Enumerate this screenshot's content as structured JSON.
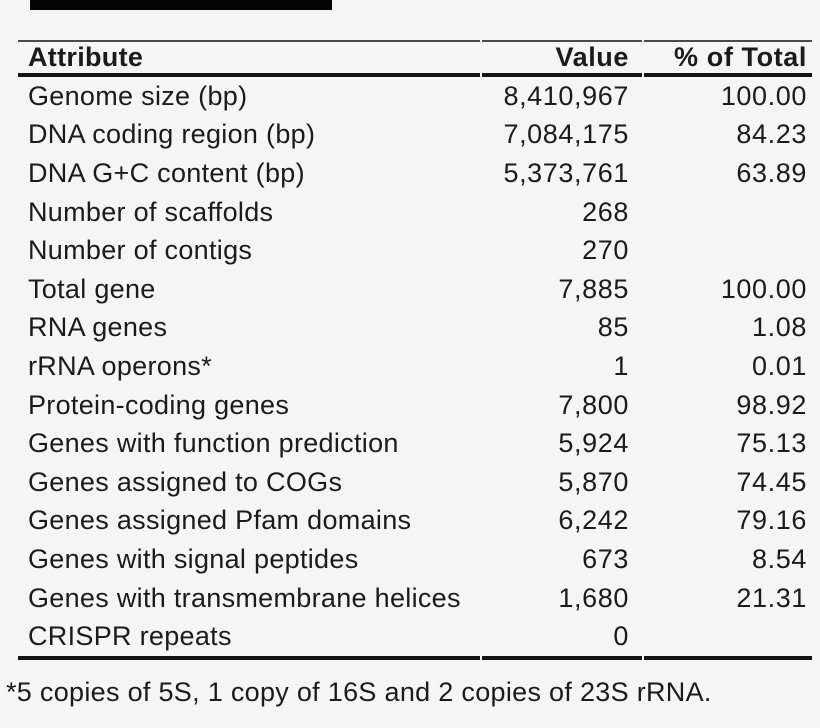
{
  "colors": {
    "background": "#f5f5f5",
    "text": "#1b1b1b",
    "rule_thin": "#4a4a4a",
    "rule_thick": "#141414",
    "artifact_bar": "#050505"
  },
  "table": {
    "columns": [
      "Attribute",
      "Value",
      "% of Total"
    ],
    "rows": [
      {
        "attribute": "Genome size (bp)",
        "value": "8,410,967",
        "percent": "100.00"
      },
      {
        "attribute": "DNA coding region (bp)",
        "value": "7,084,175",
        "percent": "84.23"
      },
      {
        "attribute": "DNA G+C content (bp)",
        "value": "5,373,761",
        "percent": "63.89"
      },
      {
        "attribute": "Number of scaffolds",
        "value": "268",
        "percent": ""
      },
      {
        "attribute": "Number of contigs",
        "value": "270",
        "percent": ""
      },
      {
        "attribute": "Total gene",
        "value": "7,885",
        "percent": "100.00"
      },
      {
        "attribute": "RNA genes",
        "value": "85",
        "percent": "1.08"
      },
      {
        "attribute": "rRNA operons*",
        "value": "1",
        "percent": "0.01"
      },
      {
        "attribute": "Protein-coding genes",
        "value": "7,800",
        "percent": "98.92"
      },
      {
        "attribute": "Genes with function prediction",
        "value": "5,924",
        "percent": "75.13"
      },
      {
        "attribute": "Genes assigned to COGs",
        "value": "5,870",
        "percent": "74.45"
      },
      {
        "attribute": "Genes assigned Pfam domains",
        "value": "6,242",
        "percent": "79.16"
      },
      {
        "attribute": "Genes with signal peptides",
        "value": "673",
        "percent": "8.54"
      },
      {
        "attribute": "Genes with transmembrane helices",
        "value": "1,680",
        "percent": "21.31"
      },
      {
        "attribute": "CRISPR repeats",
        "value": "0",
        "percent": ""
      }
    ],
    "footnote": "*5 copies of 5S, 1 copy of 16S and 2 copies of 23S rRNA."
  }
}
